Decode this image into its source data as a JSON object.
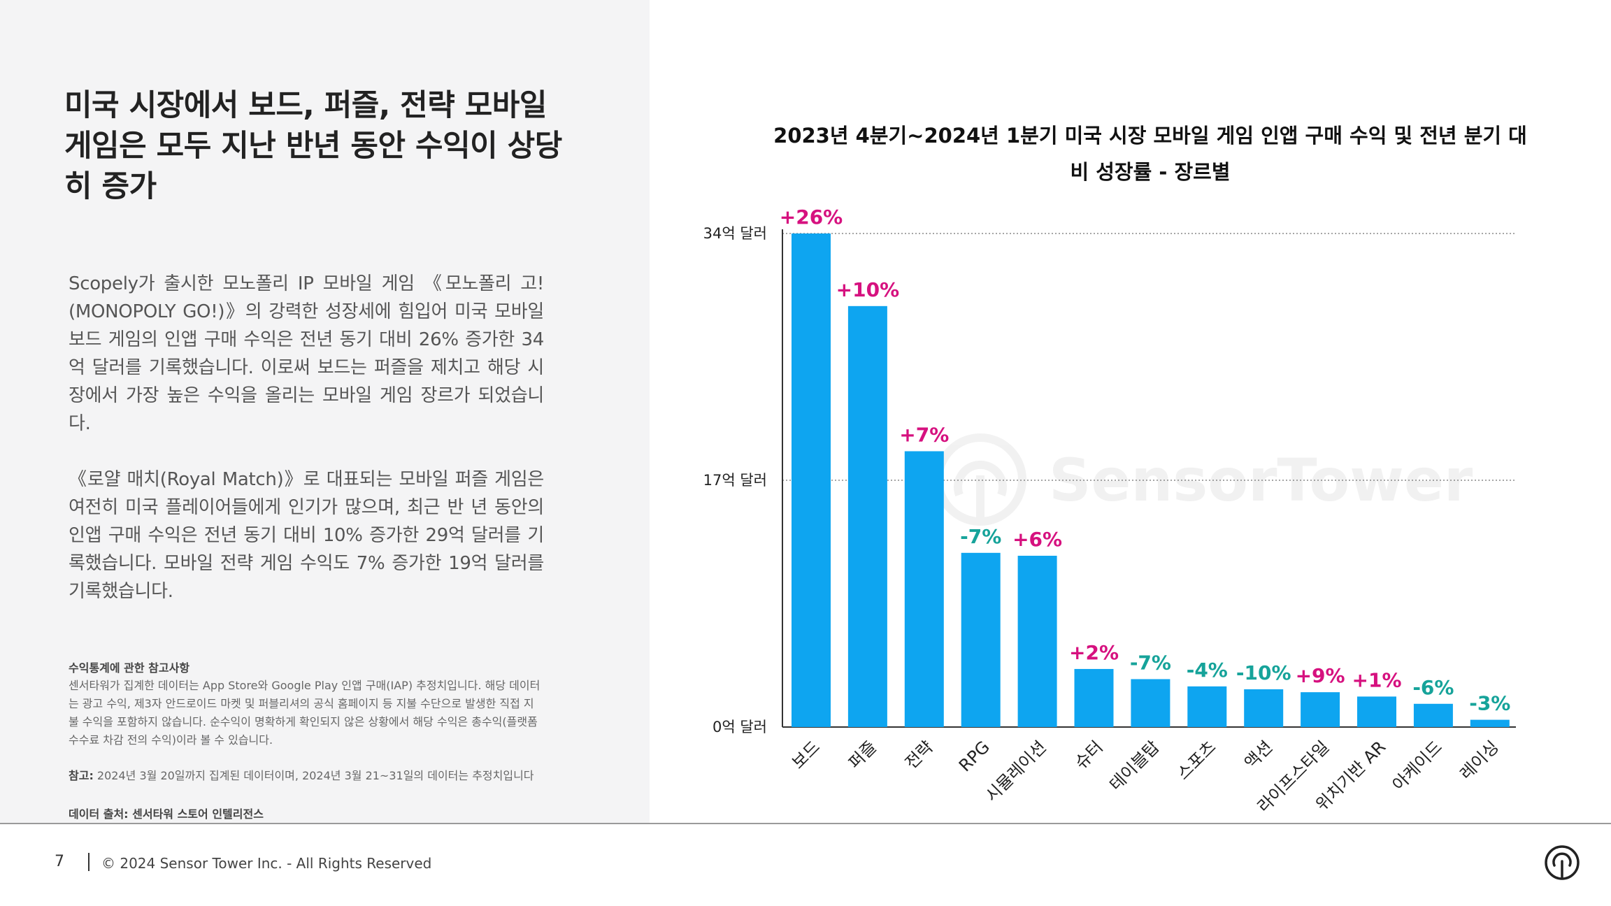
{
  "headline": "미국 시장에서 보드, 퍼즐, 전략 모바일 게임은 모두 지난 반년 동안 수익이 상당히 증가",
  "paragraphs": [
    "Scopely가 출시한 모노폴리 IP 모바일 게임 《모노폴리 고!(MONOPOLY GO!)》의 강력한 성장세에 힘입어 미국 모바일 보드 게임의 인앱 구매 수익은 전년 동기 대비 26% 증가한 34억 달러를 기록했습니다. 이로써 보드는 퍼즐을 제치고 해당 시장에서 가장 높은 수익을 올리는 모바일 게임 장르가 되었습니다.",
    "《로얄 매치(Royal Match)》로 대표되는 모바일 퍼즐 게임은 여전히 미국 플레이어들에게 인기가 많으며, 최근 반 년 동안의 인앱 구매 수익은 전년 동기 대비 10% 증가한 29억 달러를 기록했습니다. 모바일 전략 게임 수익도 7% 증가한 19억 달러를 기록했습니다."
  ],
  "note": {
    "title": "수익통계에 관한 참고사항",
    "body": "센서타워가 집계한 데이터는 App Store와 Google Play 인앱 구매(IAP) 추정치입니다. 해당 데이터는 광고 수익, 제3자 안드로이드 마켓 및 퍼블리셔의 공식 홈페이지 등 지불 수단으로 발생한 직접 지불 수익을 포함하지 않습니다. 순수익이 명확하게 확인되지 않은 상황에서 해당 수익은 총수익(플랫폼 수수료 차감 전의 수익)이라 볼 수 있습니다.",
    "ref_label": "참고:",
    "ref_text": " 2024년 3월 20일까지 집계된 데이터이며, 2024년 3월 21~31일의 데이터는 추정치입니다",
    "source": "데이터 출처: 센서타워 스토어 인텔리전스"
  },
  "footer": {
    "page_number": "7",
    "copyright": "© 2024 Sensor Tower Inc. - All Rights Reserved"
  },
  "colors": {
    "bar": "#0ea5f0",
    "positive": "#d6117f",
    "negative": "#16a39a",
    "gridline": "#888888"
  },
  "chart_data": {
    "type": "bar",
    "title": "2023년 4분기~2024년 1분기 미국 시장 모바일 게임 인앱 구매 수익 및 전년 분기 대비 성장률 - 장르별",
    "categories": [
      "보드",
      "퍼즐",
      "전략",
      "RPG",
      "시뮬레이션",
      "슈터",
      "테이블탑",
      "스포츠",
      "액션",
      "라이프스타일",
      "위치기반 AR",
      "아케이드",
      "레이싱"
    ],
    "values": [
      34,
      29,
      19,
      12,
      11.8,
      4,
      3.3,
      2.8,
      2.6,
      2.4,
      2.1,
      1.6,
      0.5
    ],
    "growth_labels": [
      "+26%",
      "+10%",
      "+7%",
      "-7%",
      "+6%",
      "+2%",
      "-7%",
      "-4%",
      "-10%",
      "+9%",
      "+1%",
      "-6%",
      "-3%"
    ],
    "ylim": [
      0,
      34
    ],
    "yticks": [
      {
        "value": 0,
        "label": "0억 달러"
      },
      {
        "value": 17,
        "label": "17억 달러"
      },
      {
        "value": 34,
        "label": "34억 달러"
      }
    ],
    "grid": true
  }
}
